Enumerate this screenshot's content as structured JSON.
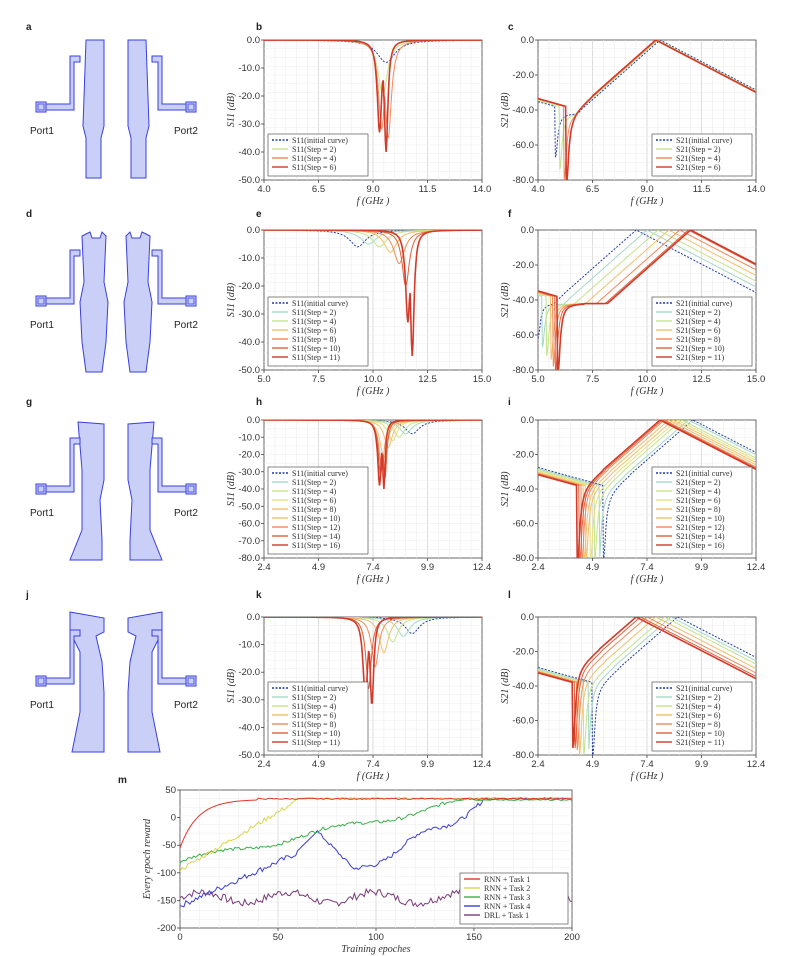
{
  "panel_letters": [
    "a",
    "b",
    "c",
    "d",
    "e",
    "f",
    "g",
    "h",
    "i",
    "j",
    "k",
    "l",
    "m"
  ],
  "port_labels": {
    "left": "Port1",
    "right": "Port2"
  },
  "colors": {
    "fill": "#c9cff7",
    "outline": "#3a3fe0",
    "initial": "#1f3aa8",
    "steps": [
      "#8fc4e8",
      "#a6d8c6",
      "#c4e48a",
      "#e6e07a",
      "#f0c06a",
      "#f08a5a",
      "#e0603a",
      "#d33a2a"
    ],
    "rl": [
      "#e0352c",
      "#d6d64a",
      "#3bb04a",
      "#3b3fd0",
      "#7a3a7a"
    ]
  },
  "chart_data": [
    {
      "id": "b",
      "type": "line",
      "xlabel": "f (GHz )",
      "ylabel": "S11 (dB)",
      "xlim": [
        4,
        14
      ],
      "ylim": [
        -50,
        0
      ],
      "xticks": [
        "4.0",
        "6.5",
        "9.0",
        "11.5",
        "14.0"
      ],
      "yticks": [
        "0.0",
        "-10.0",
        "-20.0",
        "-30.0",
        "-40.0",
        "-50.0"
      ],
      "legend": [
        "S11(initial curve)",
        "S11(Step = 2)",
        "S11(Step = 4)",
        "S11(Step = 6)"
      ],
      "curve": "s11",
      "dips": [
        [
          9.6,
          -8,
          1.0
        ],
        [
          9.45,
          -20,
          0.5
        ],
        [
          9.4,
          -32,
          0.35
        ],
        [
          9.3,
          -33,
          0.25
        ]
      ],
      "dip2": [
        [
          null
        ],
        [
          null
        ],
        [
          9.7,
          -35,
          0.35
        ],
        [
          9.6,
          -40,
          0.2
        ]
      ]
    },
    {
      "id": "c",
      "type": "line",
      "xlabel": "f (GHz )",
      "ylabel": "S21 (dB)",
      "xlim": [
        4,
        14
      ],
      "ylim": [
        -80,
        0
      ],
      "xticks": [
        "4.0",
        "6.5",
        "9.0",
        "11.5",
        "14.0"
      ],
      "yticks": [
        "0.0",
        "-20.0",
        "-40.0",
        "-60.0",
        "-80.0"
      ],
      "legend": [
        "S21(initial curve)",
        "S21(Step = 2)",
        "S21(Step = 4)",
        "S21(Step = 6)"
      ],
      "curve": "s21",
      "peaks": [
        9.6,
        9.5,
        9.45,
        9.4
      ],
      "notches": [
        4.8,
        5.0,
        5.2,
        5.3
      ],
      "notchDepth": [
        -55,
        -62,
        -68,
        -72
      ]
    },
    {
      "id": "e",
      "type": "line",
      "xlabel": "f (GHz )",
      "ylabel": "S11 (dB)",
      "xlim": [
        5,
        15
      ],
      "ylim": [
        -50,
        0
      ],
      "xticks": [
        "5.0",
        "7.5",
        "10.0",
        "12.5",
        "15.0"
      ],
      "yticks": [
        "0.0",
        "-10.0",
        "-20.0",
        "-30.0",
        "-40.0",
        "-50.0"
      ],
      "legend": [
        "S11(initial curve)",
        "S11(Step = 2)",
        "S11(Step = 4)",
        "S11(Step = 6)",
        "S11(Step = 8)",
        "S11(Step = 10)",
        "S11(Step = 11)"
      ],
      "curve": "s11",
      "dips": [
        [
          9.3,
          -6,
          0.9
        ],
        [
          9.8,
          -5,
          0.9
        ],
        [
          10.3,
          -6,
          0.8
        ],
        [
          10.8,
          -8,
          0.7
        ],
        [
          11.2,
          -12,
          0.6
        ],
        [
          11.5,
          -20,
          0.4
        ],
        [
          11.6,
          -33,
          0.25
        ]
      ],
      "dip2": [
        [
          null
        ],
        [
          null
        ],
        [
          null
        ],
        [
          null
        ],
        [
          null
        ],
        [
          null
        ],
        [
          11.8,
          -45,
          0.2
        ]
      ]
    },
    {
      "id": "f",
      "type": "line",
      "xlabel": "f (GHz )",
      "ylabel": "S21 (dB)",
      "xlim": [
        5,
        15
      ],
      "ylim": [
        -80,
        0
      ],
      "xticks": [
        "5.0",
        "7.5",
        "10.0",
        "12.5",
        "15.0"
      ],
      "yticks": [
        "0.0",
        "-20.0",
        "-40.0",
        "-60.0",
        "-80.0"
      ],
      "legend": [
        "S21(initial curve)",
        "S21(Step = 2)",
        "S21(Step = 4)",
        "S21(Step = 6)",
        "S21(Step = 8)",
        "S21(Step = 10)",
        "S21(Step = 11)"
      ],
      "curve": "s21",
      "peaks": [
        9.5,
        10.0,
        10.5,
        11.0,
        11.5,
        11.9,
        12.0
      ],
      "notches": [
        5.0,
        5.2,
        5.4,
        5.6,
        5.7,
        5.8,
        5.9
      ],
      "notchDepth": [
        -50,
        -55,
        -60,
        -62,
        -66,
        -70,
        -74
      ]
    },
    {
      "id": "h",
      "type": "line",
      "xlabel": "f (GHz )",
      "ylabel": "S11 (dB)",
      "xlim": [
        2.4,
        12.4
      ],
      "ylim": [
        -80,
        0
      ],
      "xticks": [
        "2.4",
        "4.9",
        "7.4",
        "9.9",
        "12.4"
      ],
      "yticks": [
        "0.0",
        "-10.0",
        "-20.0",
        "-30.0",
        "-40.0",
        "-50.0",
        "-60.0",
        "-70.0",
        "-80.0"
      ],
      "legend": [
        "S11(initial curve)",
        "S11(Step = 2)",
        "S11(Step = 4)",
        "S11(Step = 6)",
        "S11(Step = 8)",
        "S11(Step = 10)",
        "S11(Step = 12)",
        "S11(Step = 14)",
        "S11(Step = 16)"
      ],
      "curve": "s11",
      "dips": [
        [
          9.2,
          -8,
          0.8
        ],
        [
          8.9,
          -8,
          0.7
        ],
        [
          8.6,
          -10,
          0.6
        ],
        [
          8.3,
          -12,
          0.5
        ],
        [
          8.1,
          -16,
          0.45
        ],
        [
          7.9,
          -22,
          0.4
        ],
        [
          7.8,
          -28,
          0.3
        ],
        [
          7.75,
          -32,
          0.25
        ],
        [
          7.7,
          -38,
          0.2
        ]
      ],
      "dip2": [
        [
          null
        ],
        [
          null
        ],
        [
          null
        ],
        [
          null
        ],
        [
          null
        ],
        [
          null
        ],
        [
          null
        ],
        [
          7.95,
          -34,
          0.2
        ],
        [
          7.9,
          -40,
          0.15
        ]
      ]
    },
    {
      "id": "i",
      "type": "line",
      "xlabel": "f (GHz )",
      "ylabel": "S21 (dB)",
      "xlim": [
        2.4,
        12.4
      ],
      "ylim": [
        -80,
        0
      ],
      "xticks": [
        "2.4",
        "4.9",
        "7.4",
        "9.9",
        "12.4"
      ],
      "yticks": [
        "0.0",
        "-20.0",
        "-40.0",
        "-60.0",
        "-80.0"
      ],
      "legend": [
        "S21(initial curve)",
        "S21(Step = 2)",
        "S21(Step = 4)",
        "S21(Step = 6)",
        "S21(Step = 8)",
        "S21(Step = 10)",
        "S21(Step = 12)",
        "S21(Step = 14)",
        "S21(Step = 16)"
      ],
      "curve": "s21",
      "peaks": [
        9.5,
        9.3,
        9.0,
        8.8,
        8.6,
        8.4,
        8.2,
        8.1,
        8.0
      ],
      "notches": [
        5.4,
        5.2,
        5.0,
        4.8,
        4.6,
        4.5,
        4.4,
        4.3,
        4.2
      ],
      "notchDepth": [
        -70,
        -70,
        -70,
        -72,
        -72,
        -74,
        -74,
        -75,
        -76
      ]
    },
    {
      "id": "k",
      "type": "line",
      "xlabel": "f (GHz )",
      "ylabel": "S11 (dB)",
      "xlim": [
        2.4,
        12.4
      ],
      "ylim": [
        -50,
        0
      ],
      "xticks": [
        "2.4",
        "4.9",
        "7.4",
        "9.9",
        "12.4"
      ],
      "yticks": [
        "0.0",
        "-10.0",
        "-20.0",
        "-30.0",
        "-40.0",
        "-50.0"
      ],
      "legend": [
        "S11(initial curve)",
        "S11(Step = 2)",
        "S11(Step = 4)",
        "S11(Step = 6)",
        "S11(Step = 8)",
        "S11(Step = 10)",
        "S11(Step = 11)"
      ],
      "curve": "s11",
      "dips": [
        [
          9.2,
          -6,
          0.8
        ],
        [
          8.8,
          -7,
          0.7
        ],
        [
          8.3,
          -9,
          0.6
        ],
        [
          7.9,
          -13,
          0.5
        ],
        [
          7.5,
          -18,
          0.4
        ],
        [
          7.2,
          -26,
          0.3
        ],
        [
          7.05,
          -30,
          0.25
        ]
      ],
      "dip2": [
        [
          null
        ],
        [
          null
        ],
        [
          null
        ],
        [
          null
        ],
        [
          null
        ],
        [
          null
        ],
        [
          7.35,
          -32,
          0.2
        ]
      ]
    },
    {
      "id": "l",
      "type": "line",
      "xlabel": "f (GHz )",
      "ylabel": "S21 (dB)",
      "xlim": [
        2.4,
        12.4
      ],
      "ylim": [
        -80,
        0
      ],
      "xticks": [
        "2.4",
        "4.9",
        "7.4",
        "9.9",
        "12.4"
      ],
      "yticks": [
        "0.0",
        "-20.0",
        "-40.0",
        "-60.0",
        "-80.0"
      ],
      "legend": [
        "S21(initial curve)",
        "S21(Step = 2)",
        "S21(Step = 4)",
        "S21(Step = 6)",
        "S21(Step = 8)",
        "S21(Step = 10)",
        "S21(Step = 11)"
      ],
      "curve": "s21",
      "peaks": [
        8.8,
        8.5,
        8.2,
        7.8,
        7.4,
        7.1,
        6.9
      ],
      "notches": [
        4.9,
        4.7,
        4.5,
        4.3,
        4.2,
        4.1,
        4.0
      ],
      "notchDepth": [
        -70,
        -68,
        -70,
        -72,
        -72,
        -73,
        -74
      ]
    },
    {
      "id": "m",
      "type": "line",
      "xlabel": "Training epoches",
      "ylabel": "Every epoch reward",
      "xlim": [
        0,
        200
      ],
      "ylim": [
        -200,
        50
      ],
      "xticks": [
        "0",
        "50",
        "100",
        "150",
        "200"
      ],
      "yticks": [
        "50",
        "0",
        "-50",
        "-100",
        "-150",
        "-200"
      ],
      "legend": [
        "RNN + Task 1",
        "RNN + Task 2",
        "RNN + Task 3",
        "RNN + Task 4",
        "DRL + Task 1"
      ],
      "series": [
        {
          "name": "RNN + Task 1",
          "kind": "t1"
        },
        {
          "name": "RNN + Task 2",
          "kind": "t2"
        },
        {
          "name": "RNN + Task 3",
          "kind": "t3"
        },
        {
          "name": "RNN + Task 4",
          "kind": "t4"
        },
        {
          "name": "DRL + Task 1",
          "kind": "drl"
        }
      ]
    }
  ]
}
